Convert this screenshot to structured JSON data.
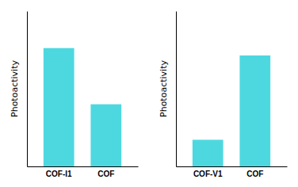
{
  "chart_data": [
    {
      "type": "bar",
      "categories": [
        "COF-I1",
        "COF"
      ],
      "values": [
        0.8,
        0.42
      ],
      "color": "#4DD8E0",
      "ylabel": "Photoactivity",
      "ylim": [
        0,
        1.05
      ],
      "tick_labels": "x"
    },
    {
      "type": "bar",
      "categories": [
        "COF-V1",
        "COF"
      ],
      "values": [
        0.18,
        0.75
      ],
      "color": "#4DD8E0",
      "ylabel": "Photoactivity",
      "ylim": [
        0,
        1.05
      ],
      "tick_labels": "x"
    }
  ]
}
